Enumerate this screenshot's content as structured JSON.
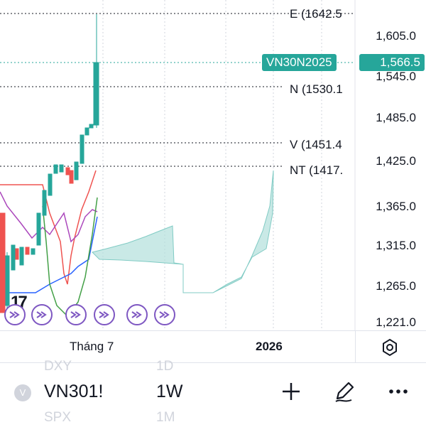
{
  "price_axis": {
    "ticks": [
      "1,605.0",
      "1,545.0",
      "1,485.0",
      "1,425.0",
      "1,365.0",
      "1,315.0",
      "1,265.0",
      "1,221.0"
    ],
    "current_price": "1,566.5"
  },
  "symbol_tag": "VN30N2025",
  "levels": [
    {
      "label": "E (1642.5"
    },
    {
      "label": "N (1530.1"
    },
    {
      "label": "V (1451.4"
    },
    {
      "label": "NT (1417."
    }
  ],
  "x_axis": {
    "labels": [
      "Tháng 7",
      "2026"
    ]
  },
  "bottom_bar": {
    "symbol": "VN301!",
    "timeframe": "1W",
    "ghost_top": [
      "DXY",
      "1D"
    ],
    "ghost_bottom": [
      "SPX",
      "1M"
    ]
  },
  "logo": "17",
  "colors": {
    "up": "#26a69a",
    "down": "#ef5350",
    "accent": "#7e57c2",
    "cloud": "#b2dfdb"
  },
  "icons": [
    "plus-icon",
    "pencil-icon",
    "more-icon",
    "gear-icon",
    "chart-settings-icon",
    "symbol-icon",
    "replay-icon"
  ]
}
